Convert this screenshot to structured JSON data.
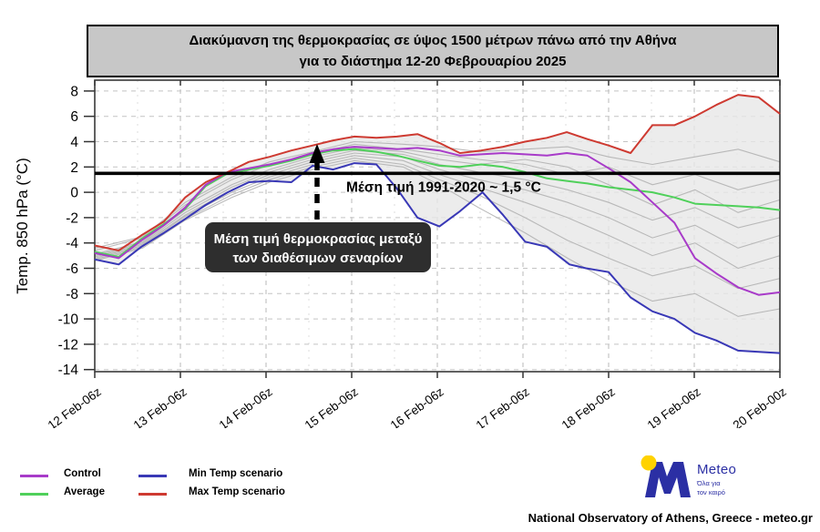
{
  "title": {
    "line1": "Διακύμανση της θερμοκρασίας σε ύψος 1500 μέτρων πάνω από την Αθήνα",
    "line2": "για το διάστημα 12-20 Φεβρουαρίου 2025"
  },
  "annotation": {
    "line1": "Μέση τιμή θερμοκρασίας μεταξύ",
    "line2": "των διαθέσιμων σεναρίων"
  },
  "legend": {
    "items": [
      {
        "label": "Control",
        "color": "#a83bc9"
      },
      {
        "label": "Average",
        "color": "#4fd05a"
      },
      {
        "label": "Min Temp scenario",
        "color": "#3938b6"
      },
      {
        "label": "Max Temp scenario",
        "color": "#ce3a31"
      }
    ]
  },
  "footer": {
    "brand": "Meteo",
    "tagline1": "Όλα για",
    "tagline2": "τον καιρό",
    "attribution": "National Observatory of Athens, Greece - meteo.gr"
  },
  "chart_data": {
    "type": "line",
    "title": "Διακύμανση της θερμοκρασίας σε ύψος 1500 μέτρων πάνω από την Αθήνα για το διάστημα 12-20 Φεβρουαρίου 2025",
    "ylabel": "Temp. 850 hPa (°C)",
    "ylim": [
      -14.2,
      8.9
    ],
    "yticks": [
      8,
      6,
      4,
      2,
      0,
      -2,
      -4,
      -6,
      -8,
      -10,
      -12,
      -14
    ],
    "xtick_labels": [
      "12 Feb-06z",
      "13 Feb-06z",
      "14 Feb-06z",
      "15 Feb-06z",
      "16 Feb-06z",
      "17 Feb-06z",
      "18 Feb-06z",
      "19 Feb-06z",
      "20 Feb-00z"
    ],
    "grid": true,
    "legend_position": "bottom-left",
    "reference_line": {
      "value": 1.5,
      "label": "Μέση τιμή 1991-2020 ~ 1,5 °C"
    },
    "envelope": {
      "between": [
        "Max Temp scenario",
        "Min Temp scenario"
      ],
      "fill": "#e7e7e7"
    },
    "series": [
      {
        "name": "Max Temp scenario",
        "role": "max",
        "color": "#ce3a31",
        "points": [
          [
            0,
            -4.2
          ],
          [
            0.035,
            -4.6
          ],
          [
            0.068,
            -3.4
          ],
          [
            0.101,
            -2.3
          ],
          [
            0.132,
            -0.4
          ],
          [
            0.162,
            0.8
          ],
          [
            0.194,
            1.6
          ],
          [
            0.225,
            2.4
          ],
          [
            0.255,
            2.8
          ],
          [
            0.287,
            3.3
          ],
          [
            0.318,
            3.7
          ],
          [
            0.348,
            4.1
          ],
          [
            0.379,
            4.4
          ],
          [
            0.411,
            4.3
          ],
          [
            0.441,
            4.4
          ],
          [
            0.471,
            4.6
          ],
          [
            0.503,
            3.9
          ],
          [
            0.533,
            3.1
          ],
          [
            0.564,
            3.3
          ],
          [
            0.596,
            3.6
          ],
          [
            0.628,
            4.0
          ],
          [
            0.66,
            4.3
          ],
          [
            0.689,
            4.75
          ],
          [
            0.719,
            4.2
          ],
          [
            0.75,
            3.7
          ],
          [
            0.782,
            3.1
          ],
          [
            0.814,
            5.3
          ],
          [
            0.846,
            5.3
          ],
          [
            0.876,
            6.0
          ],
          [
            0.907,
            6.9
          ],
          [
            0.939,
            7.7
          ],
          [
            0.969,
            7.5
          ],
          [
            1,
            6.2
          ]
        ]
      },
      {
        "name": "Control",
        "role": "ctl",
        "color": "#a83bc9",
        "points": [
          [
            0,
            -4.8
          ],
          [
            0.035,
            -5.2
          ],
          [
            0.068,
            -3.8
          ],
          [
            0.101,
            -2.6
          ],
          [
            0.132,
            -1.2
          ],
          [
            0.162,
            0.6
          ],
          [
            0.194,
            1.6
          ],
          [
            0.225,
            1.9
          ],
          [
            0.255,
            2.2
          ],
          [
            0.287,
            2.6
          ],
          [
            0.318,
            3.1
          ],
          [
            0.348,
            3.4
          ],
          [
            0.379,
            3.6
          ],
          [
            0.411,
            3.5
          ],
          [
            0.441,
            3.4
          ],
          [
            0.471,
            3.5
          ],
          [
            0.503,
            3.3
          ],
          [
            0.533,
            2.9
          ],
          [
            0.564,
            3.0
          ],
          [
            0.596,
            3.1
          ],
          [
            0.628,
            3.0
          ],
          [
            0.66,
            2.9
          ],
          [
            0.689,
            3.1
          ],
          [
            0.719,
            2.9
          ],
          [
            0.75,
            1.9
          ],
          [
            0.782,
            0.8
          ],
          [
            0.814,
            -0.8
          ],
          [
            0.846,
            -2.4
          ],
          [
            0.876,
            -5.2
          ],
          [
            0.907,
            -6.4
          ],
          [
            0.939,
            -7.5
          ],
          [
            0.969,
            -8.1
          ],
          [
            1,
            -7.9
          ]
        ]
      },
      {
        "name": "Average",
        "role": "avg",
        "color": "#4fd05a",
        "points": [
          [
            0,
            -4.7
          ],
          [
            0.035,
            -5.1
          ],
          [
            0.068,
            -3.7
          ],
          [
            0.101,
            -2.5
          ],
          [
            0.132,
            -1.3
          ],
          [
            0.162,
            0.5
          ],
          [
            0.194,
            1.5
          ],
          [
            0.225,
            1.8
          ],
          [
            0.255,
            2.1
          ],
          [
            0.287,
            2.5
          ],
          [
            0.318,
            3.0
          ],
          [
            0.348,
            3.3
          ],
          [
            0.379,
            3.4
          ],
          [
            0.411,
            3.2
          ],
          [
            0.441,
            2.9
          ],
          [
            0.471,
            2.5
          ],
          [
            0.503,
            2.1
          ],
          [
            0.533,
            2.0
          ],
          [
            0.564,
            2.2
          ],
          [
            0.596,
            2.0
          ],
          [
            0.628,
            1.6
          ],
          [
            0.66,
            1.1
          ],
          [
            0.689,
            0.9
          ],
          [
            0.719,
            0.7
          ],
          [
            0.75,
            0.4
          ],
          [
            0.782,
            0.2
          ],
          [
            0.814,
            0.0
          ],
          [
            0.846,
            -0.4
          ],
          [
            0.876,
            -0.9
          ],
          [
            0.907,
            -1.0
          ],
          [
            0.939,
            -1.1
          ],
          [
            0.969,
            -1.2
          ],
          [
            1,
            -1.4
          ]
        ]
      },
      {
        "name": "Min Temp scenario",
        "role": "min",
        "color": "#3938b6",
        "points": [
          [
            0,
            -5.3
          ],
          [
            0.035,
            -5.7
          ],
          [
            0.068,
            -4.3
          ],
          [
            0.101,
            -3.2
          ],
          [
            0.132,
            -2.1
          ],
          [
            0.162,
            -1.0
          ],
          [
            0.194,
            0.0
          ],
          [
            0.225,
            0.8
          ],
          [
            0.255,
            0.9
          ],
          [
            0.287,
            0.8
          ],
          [
            0.318,
            2.1
          ],
          [
            0.348,
            1.8
          ],
          [
            0.379,
            2.3
          ],
          [
            0.411,
            2.2
          ],
          [
            0.441,
            0.3
          ],
          [
            0.471,
            -2.0
          ],
          [
            0.503,
            -2.7
          ],
          [
            0.533,
            -1.5
          ],
          [
            0.566,
            0.0
          ],
          [
            0.596,
            -1.8
          ],
          [
            0.628,
            -3.9
          ],
          [
            0.66,
            -4.3
          ],
          [
            0.693,
            -5.7
          ],
          [
            0.717,
            -6.0
          ],
          [
            0.75,
            -6.3
          ],
          [
            0.782,
            -8.3
          ],
          [
            0.814,
            -9.4
          ],
          [
            0.846,
            -10.0
          ],
          [
            0.876,
            -11.1
          ],
          [
            0.907,
            -11.7
          ],
          [
            0.939,
            -12.5
          ],
          [
            0.969,
            -12.6
          ],
          [
            1,
            -12.7
          ]
        ]
      }
    ],
    "ensemble": {
      "color": "#b2b2b2",
      "members": [
        [
          [
            0,
            -4.4
          ],
          [
            0.07,
            -3.5
          ],
          [
            0.132,
            -0.8
          ],
          [
            0.2,
            1.2
          ],
          [
            0.255,
            2.4
          ],
          [
            0.318,
            3.2
          ],
          [
            0.379,
            4.0
          ],
          [
            0.45,
            3.8
          ],
          [
            0.503,
            3.6
          ],
          [
            0.56,
            3.2
          ],
          [
            0.628,
            3.4
          ],
          [
            0.69,
            3.6
          ],
          [
            0.75,
            2.8
          ],
          [
            0.814,
            2.2
          ],
          [
            0.876,
            2.8
          ],
          [
            0.939,
            3.4
          ],
          [
            1,
            2.4
          ]
        ],
        [
          [
            0,
            -4.6
          ],
          [
            0.07,
            -3.6
          ],
          [
            0.132,
            -1.0
          ],
          [
            0.2,
            1.0
          ],
          [
            0.255,
            2.2
          ],
          [
            0.318,
            3.0
          ],
          [
            0.379,
            3.8
          ],
          [
            0.45,
            3.4
          ],
          [
            0.503,
            3.0
          ],
          [
            0.56,
            2.6
          ],
          [
            0.628,
            2.2
          ],
          [
            0.69,
            1.4
          ],
          [
            0.75,
            2.0
          ],
          [
            0.814,
            0.6
          ],
          [
            0.876,
            1.4
          ],
          [
            0.939,
            0.2
          ],
          [
            1,
            1.0
          ]
        ],
        [
          [
            0,
            -4.9
          ],
          [
            0.07,
            -3.9
          ],
          [
            0.132,
            -1.4
          ],
          [
            0.2,
            0.6
          ],
          [
            0.255,
            1.8
          ],
          [
            0.318,
            2.8
          ],
          [
            0.379,
            3.5
          ],
          [
            0.45,
            3.2
          ],
          [
            0.503,
            2.6
          ],
          [
            0.56,
            2.2
          ],
          [
            0.628,
            2.6
          ],
          [
            0.69,
            2.0
          ],
          [
            0.75,
            0.6
          ],
          [
            0.814,
            -1.0
          ],
          [
            0.876,
            0.2
          ],
          [
            0.939,
            -1.6
          ],
          [
            1,
            -0.6
          ]
        ],
        [
          [
            0,
            -5.0
          ],
          [
            0.07,
            -4.0
          ],
          [
            0.132,
            -1.6
          ],
          [
            0.2,
            0.4
          ],
          [
            0.255,
            1.6
          ],
          [
            0.318,
            2.6
          ],
          [
            0.379,
            3.3
          ],
          [
            0.45,
            3.0
          ],
          [
            0.503,
            2.2
          ],
          [
            0.56,
            1.6
          ],
          [
            0.628,
            1.0
          ],
          [
            0.69,
            0.2
          ],
          [
            0.75,
            -0.8
          ],
          [
            0.814,
            -2.2
          ],
          [
            0.876,
            -1.2
          ],
          [
            0.939,
            -2.8
          ],
          [
            1,
            -2.0
          ]
        ],
        [
          [
            0,
            -5.1
          ],
          [
            0.07,
            -4.1
          ],
          [
            0.132,
            -1.8
          ],
          [
            0.2,
            0.2
          ],
          [
            0.255,
            1.4
          ],
          [
            0.318,
            2.4
          ],
          [
            0.379,
            3.1
          ],
          [
            0.45,
            2.8
          ],
          [
            0.503,
            1.8
          ],
          [
            0.56,
            1.0
          ],
          [
            0.628,
            0.2
          ],
          [
            0.69,
            -0.8
          ],
          [
            0.75,
            -2.0
          ],
          [
            0.814,
            -3.6
          ],
          [
            0.876,
            -2.6
          ],
          [
            0.939,
            -4.4
          ],
          [
            1,
            -3.4
          ]
        ],
        [
          [
            0,
            -5.2
          ],
          [
            0.07,
            -4.2
          ],
          [
            0.132,
            -1.9
          ],
          [
            0.2,
            0.0
          ],
          [
            0.255,
            1.2
          ],
          [
            0.318,
            2.2
          ],
          [
            0.379,
            2.9
          ],
          [
            0.45,
            2.5
          ],
          [
            0.503,
            1.4
          ],
          [
            0.56,
            0.4
          ],
          [
            0.628,
            -0.8
          ],
          [
            0.69,
            -2.0
          ],
          [
            0.75,
            -3.4
          ],
          [
            0.814,
            -5.0
          ],
          [
            0.876,
            -4.0
          ],
          [
            0.939,
            -6.0
          ],
          [
            1,
            -5.0
          ]
        ],
        [
          [
            0,
            -5.3
          ],
          [
            0.07,
            -4.3
          ],
          [
            0.132,
            -2.1
          ],
          [
            0.2,
            -0.2
          ],
          [
            0.255,
            1.0
          ],
          [
            0.318,
            2.0
          ],
          [
            0.379,
            2.7
          ],
          [
            0.45,
            2.2
          ],
          [
            0.503,
            1.0
          ],
          [
            0.56,
            -0.2
          ],
          [
            0.628,
            -2.0
          ],
          [
            0.69,
            -3.8
          ],
          [
            0.75,
            -5.2
          ],
          [
            0.814,
            -6.6
          ],
          [
            0.876,
            -5.8
          ],
          [
            0.939,
            -7.6
          ],
          [
            1,
            -6.8
          ]
        ],
        [
          [
            0,
            -5.4
          ],
          [
            0.07,
            -4.4
          ],
          [
            0.132,
            -2.2
          ],
          [
            0.2,
            -0.4
          ],
          [
            0.255,
            0.8
          ],
          [
            0.318,
            1.8
          ],
          [
            0.379,
            2.5
          ],
          [
            0.45,
            2.0
          ],
          [
            0.503,
            0.6
          ],
          [
            0.56,
            -1.2
          ],
          [
            0.628,
            -3.2
          ],
          [
            0.69,
            -5.2
          ],
          [
            0.75,
            -7.0
          ],
          [
            0.814,
            -8.6
          ],
          [
            0.876,
            -8.0
          ],
          [
            0.939,
            -9.8
          ],
          [
            1,
            -9.2
          ]
        ]
      ]
    }
  }
}
